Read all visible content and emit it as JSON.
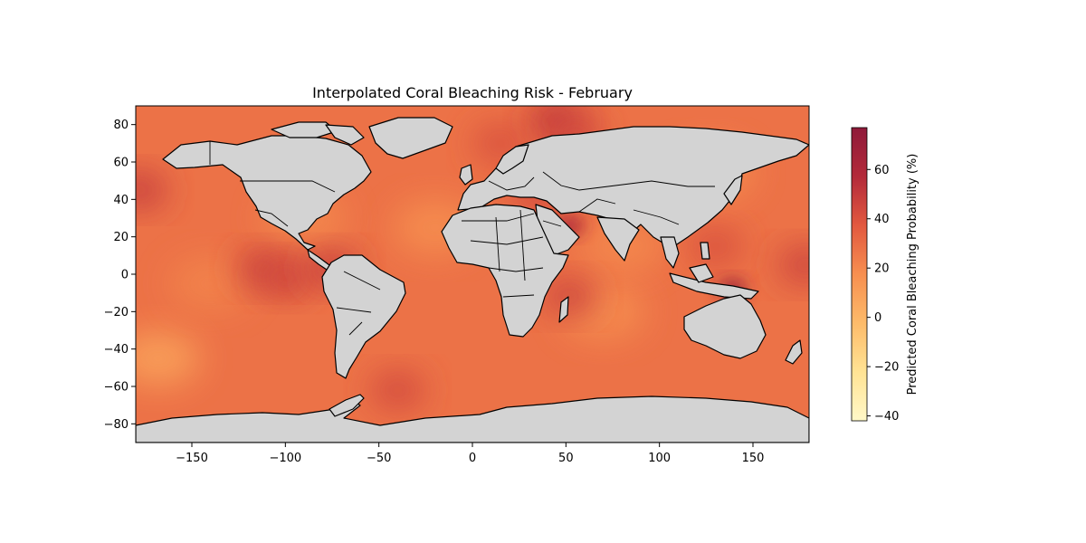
{
  "chart_data": {
    "type": "heatmap",
    "title": "Interpolated Coral Bleaching Risk - February",
    "projection": "plate-carree",
    "xlim": [
      -180,
      180
    ],
    "ylim": [
      -90,
      90
    ],
    "x_ticks": [
      -150,
      -100,
      -50,
      0,
      50,
      100,
      150
    ],
    "y_ticks": [
      80,
      60,
      40,
      20,
      0,
      -20,
      -40,
      -60,
      -80
    ],
    "x_tick_labels": [
      "−150",
      "−100",
      "−50",
      "0",
      "50",
      "100",
      "150"
    ],
    "y_tick_labels": [
      "80",
      "60",
      "40",
      "20",
      "0",
      "−20",
      "−40",
      "−60",
      "−80"
    ],
    "land_color": "#d3d3d3",
    "colormap": "YlOrRd",
    "colorbar": {
      "label": "Predicted Coral Bleaching Probability (%)",
      "range": [
        -42,
        77
      ],
      "ticks": [
        60,
        40,
        20,
        0,
        -20,
        -40
      ],
      "tick_labels": [
        "60",
        "40",
        "20",
        "0",
        "−20",
        "−40"
      ],
      "stops": [
        "#fff8c8",
        "#ffe394",
        "#fdbb6a",
        "#f78f50",
        "#e2583f",
        "#b32a3a",
        "#8f1a3a"
      ]
    },
    "background_risk_level": 28,
    "hotspots": [
      {
        "lon": -112,
        "lat": 3,
        "value": 48
      },
      {
        "lon": -100,
        "lat": -2,
        "value": 46
      },
      {
        "lon": -75,
        "lat": 3,
        "value": 50
      },
      {
        "lon": 130,
        "lat": 15,
        "value": 42
      },
      {
        "lon": 45,
        "lat": 82,
        "value": 55
      },
      {
        "lon": 52,
        "lat": -12,
        "value": 48
      },
      {
        "lon": 139,
        "lat": -8,
        "value": 70
      },
      {
        "lon": 52,
        "lat": 26,
        "value": 62
      },
      {
        "lon": -178,
        "lat": 45,
        "value": 50
      },
      {
        "lon": 178,
        "lat": 5,
        "value": 48
      },
      {
        "lon": 55,
        "lat": 75,
        "value": 45
      },
      {
        "lon": -40,
        "lat": -62,
        "value": 45
      },
      {
        "lon": 15,
        "lat": 70,
        "value": 42
      },
      {
        "lon": 35,
        "lat": 42,
        "value": 45
      }
    ],
    "coolspots": [
      {
        "lon": -168,
        "lat": -45,
        "value": 10
      },
      {
        "lon": -20,
        "lat": 25,
        "value": 18
      },
      {
        "lon": 70,
        "lat": -20,
        "value": 18
      },
      {
        "lon": -140,
        "lat": -5,
        "value": 22
      },
      {
        "lon": 80,
        "lat": 15,
        "value": 20
      },
      {
        "lon": 128,
        "lat": 55,
        "value": 18
      },
      {
        "lon": -90,
        "lat": 30,
        "value": 20
      }
    ]
  }
}
